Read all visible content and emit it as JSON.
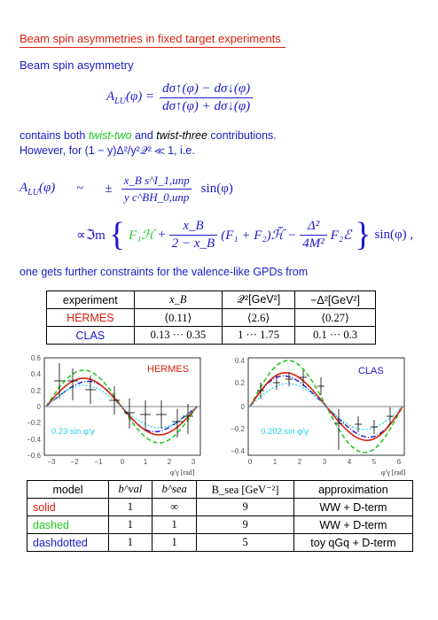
{
  "title": "Beam spin asymmetries in fixed target experiments",
  "subtitle": "Beam spin asymmetry",
  "eq1": {
    "lhs": "A",
    "lhs_sub": "LU",
    "arg": "(φ) =",
    "num": "dσ↑(φ) − dσ↓(φ)",
    "den": "dσ↑(φ) + dσ↓(φ)"
  },
  "para1": {
    "pre": "contains both ",
    "twist2": "twist-two",
    "mid": " and ",
    "twist3": "twist-three",
    "post": " contributions."
  },
  "para2": "However, for (1 − y)Δ²/y²𝒬² ≪ 1, i.e.",
  "eq2": {
    "lhs": "A",
    "lhs_sub": "LU",
    "arg": "(φ)",
    "sim": "~",
    "pm": "±",
    "num": "x_B s^I_1,unp",
    "den": "y c^BH_0,unp",
    "tail": "sin(φ)"
  },
  "eq3": {
    "pre": "∝ℑm",
    "term1": "F₁ℋ",
    "plus": "+",
    "frac_num": "x_B",
    "frac_den": "2 − x_B",
    "mid": "(F₁ + F₂)ℋ̃ −",
    "frac2_num": "Δ²",
    "frac2_den": "4M²",
    "tail": "F₂ℰ",
    "after": "sin(φ) ,"
  },
  "constraints": "one gets further constraints for the valence-like GPDs from",
  "table1": {
    "header": [
      "experiment",
      "x_B",
      "𝒬²[GeV²]",
      "−Δ²[GeV²]"
    ],
    "rows": [
      [
        "HERMES",
        "⟨0.11⟩",
        "⟨2.6⟩",
        "⟨0.27⟩"
      ],
      [
        "CLAS",
        "0.13 ··· 0.35",
        "1 ··· 1.75",
        "0.1 ··· 0.3"
      ]
    ]
  },
  "plot_hermes": {
    "label": "HERMES",
    "fit": "0.23 sin φ′γ",
    "xlabel": "φ′γ [rad]",
    "xticks": [
      "−3",
      "−2",
      "−1",
      "0",
      "1",
      "2",
      "3"
    ],
    "yticks": [
      "0.6",
      "0.4",
      "0.2",
      "0",
      "−0.2",
      "−0.4",
      "−0.6"
    ]
  },
  "plot_clas": {
    "label": "CLAS",
    "fit": "0.202 sin φ′γ",
    "xlabel": "φ′γ [rad]",
    "xticks": [
      "0",
      "1",
      "2",
      "3",
      "4",
      "5",
      "6"
    ],
    "yticks": [
      "0.4",
      "0.2",
      "0",
      "−0.2",
      "−0.4"
    ]
  },
  "table2": {
    "header": [
      "model",
      "b^val",
      "b^sea",
      "B_sea [GeV⁻²]",
      "approximation"
    ],
    "rows": [
      [
        "solid",
        "1",
        "∞",
        "9",
        "WW + D-term"
      ],
      [
        "dashed",
        "1",
        "1",
        "9",
        "WW + D-term"
      ],
      [
        "dashdotted",
        "1",
        "1",
        "5",
        "toy qGq + D-term"
      ]
    ]
  },
  "colors": {
    "red": "#d8200c",
    "blue": "#1a1ac8",
    "green": "#22c922",
    "cyan": "#1ad0e8"
  }
}
